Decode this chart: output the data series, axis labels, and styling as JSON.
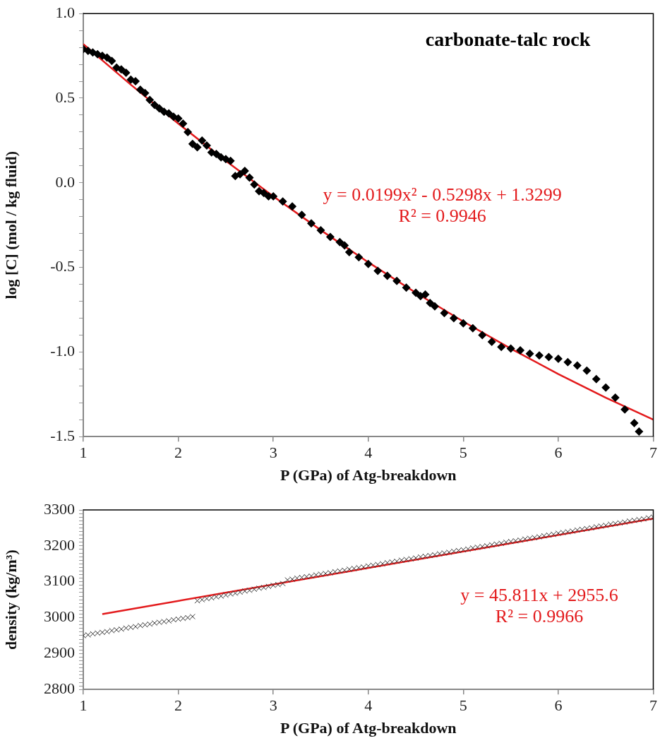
{
  "chart_data": [
    {
      "type": "scatter",
      "title": "carbonate-talc rock",
      "xlabel": "P (GPa) of Atg-breakdown",
      "ylabel": "log [C] (mol / kg fluid)",
      "marker": "diamond",
      "legend": false,
      "grid": false,
      "xlim": [
        1,
        7
      ],
      "xticks": [
        1,
        2,
        3,
        4,
        5,
        6,
        7
      ],
      "ylim": [
        -1.5,
        1
      ],
      "yticks": [
        {
          "value": -1.5,
          "label": "-1.5"
        },
        {
          "value": -1.4,
          "label": null
        },
        {
          "value": -1.3,
          "label": null
        },
        {
          "value": -1.2,
          "label": null
        },
        {
          "value": -1.1,
          "label": null
        },
        {
          "value": -1,
          "label": "-1.0"
        },
        {
          "value": -0.9,
          "label": null
        },
        {
          "value": -0.8,
          "label": null
        },
        {
          "value": -0.7,
          "label": null
        },
        {
          "value": -0.6,
          "label": null
        },
        {
          "value": -0.5,
          "label": "-0.5"
        },
        {
          "value": -0.4,
          "label": null
        },
        {
          "value": -0.3,
          "label": null
        },
        {
          "value": -0.2,
          "label": null
        },
        {
          "value": -0.1,
          "label": null
        },
        {
          "value": 0,
          "label": "0.0"
        },
        {
          "value": 0.1,
          "label": null
        },
        {
          "value": 0.2,
          "label": null
        },
        {
          "value": 0.3,
          "label": null
        },
        {
          "value": 0.4,
          "label": null
        },
        {
          "value": 0.5,
          "label": "0.5"
        },
        {
          "value": 0.6,
          "label": null
        },
        {
          "value": 0.7,
          "label": null
        },
        {
          "value": 0.8,
          "label": null
        },
        {
          "value": 0.9,
          "label": null
        },
        {
          "value": 1,
          "label": "1.0"
        }
      ],
      "annotations": [
        "y = 0.0199x² - 0.5298x + 1.3299",
        "R² = 0.9946"
      ],
      "series": [
        {
          "color": "#000000",
          "x": [
            1.0,
            1.05,
            1.1,
            1.15,
            1.2,
            1.25,
            1.3,
            1.35,
            1.4,
            1.45,
            1.5,
            1.55,
            1.6,
            1.65,
            1.7,
            1.75,
            1.8,
            1.85,
            1.9,
            1.95,
            2.0,
            2.05,
            2.1,
            2.15,
            2.2,
            2.25,
            2.3,
            2.35,
            2.4,
            2.45,
            2.5,
            2.55,
            2.6,
            2.65,
            2.7,
            2.75,
            2.8,
            2.85,
            2.9,
            2.95,
            3.0,
            3.1,
            3.2,
            3.3,
            3.4,
            3.5,
            3.6,
            3.7,
            3.75,
            3.8,
            3.9,
            4.0,
            4.1,
            4.2,
            4.3,
            4.4,
            4.5,
            4.55,
            4.6,
            4.65,
            4.7,
            4.8,
            4.9,
            5.0,
            5.1,
            5.2,
            5.3,
            5.4,
            5.5,
            5.6,
            5.7,
            5.8,
            5.9,
            6.0,
            6.1,
            6.2,
            6.3,
            6.4,
            6.5,
            6.6,
            6.7,
            6.8,
            6.85
          ],
          "values": [
            0.79,
            0.78,
            0.77,
            0.76,
            0.75,
            0.74,
            0.72,
            0.68,
            0.67,
            0.65,
            0.61,
            0.6,
            0.55,
            0.53,
            0.49,
            0.46,
            0.44,
            0.42,
            0.41,
            0.39,
            0.38,
            0.35,
            0.3,
            0.23,
            0.21,
            0.25,
            0.22,
            0.18,
            0.17,
            0.15,
            0.14,
            0.13,
            0.04,
            0.05,
            0.07,
            0.03,
            -0.01,
            -0.05,
            -0.06,
            -0.08,
            -0.08,
            -0.11,
            -0.14,
            -0.19,
            -0.24,
            -0.28,
            -0.32,
            -0.35,
            -0.37,
            -0.41,
            -0.44,
            -0.48,
            -0.52,
            -0.55,
            -0.58,
            -0.62,
            -0.65,
            -0.67,
            -0.66,
            -0.71,
            -0.73,
            -0.77,
            -0.8,
            -0.83,
            -0.86,
            -0.9,
            -0.94,
            -0.97,
            -0.98,
            -0.99,
            -1.01,
            -1.02,
            -1.03,
            -1.04,
            -1.06,
            -1.08,
            -1.11,
            -1.16,
            -1.21,
            -1.27,
            -1.34,
            -1.42,
            -1.47
          ]
        },
        {
          "type": "line",
          "color": "#e31a1c",
          "marker": "none",
          "x": [
            1,
            1.5,
            2,
            2.5,
            3,
            3.5,
            4,
            4.5,
            5,
            5.5,
            6,
            6.5,
            7
          ],
          "values": [
            0.82,
            0.58,
            0.35,
            0.13,
            -0.08,
            -0.28,
            -0.47,
            -0.65,
            -0.82,
            -0.98,
            -1.13,
            -1.27,
            -1.4
          ]
        }
      ]
    },
    {
      "type": "scatter",
      "xlabel": "P (GPa) of Atg-breakdown",
      "ylabel": "density (kg/m³)",
      "marker": "cross",
      "legend": false,
      "grid": false,
      "xlim": [
        1,
        7
      ],
      "xticks": [
        1,
        2,
        3,
        4,
        5,
        6,
        7
      ],
      "ylim": [
        2800,
        3300
      ],
      "yticks": [
        2800,
        {
          "value": 2810,
          "label": null
        },
        {
          "value": 2820,
          "label": null
        },
        {
          "value": 2830,
          "label": null
        },
        {
          "value": 2840,
          "label": null
        },
        {
          "value": 2850,
          "label": null
        },
        {
          "value": 2860,
          "label": null
        },
        {
          "value": 2870,
          "label": null
        },
        {
          "value": 2880,
          "label": null
        },
        {
          "value": 2890,
          "label": null
        },
        2900,
        {
          "value": 2910,
          "label": null
        },
        {
          "value": 2920,
          "label": null
        },
        {
          "value": 2930,
          "label": null
        },
        {
          "value": 2940,
          "label": null
        },
        {
          "value": 2950,
          "label": null
        },
        {
          "value": 2960,
          "label": null
        },
        {
          "value": 2970,
          "label": null
        },
        {
          "value": 2980,
          "label": null
        },
        {
          "value": 2990,
          "label": null
        },
        3000,
        {
          "value": 3010,
          "label": null
        },
        {
          "value": 3020,
          "label": null
        },
        {
          "value": 3030,
          "label": null
        },
        {
          "value": 3040,
          "label": null
        },
        {
          "value": 3050,
          "label": null
        },
        {
          "value": 3060,
          "label": null
        },
        {
          "value": 3070,
          "label": null
        },
        {
          "value": 3080,
          "label": null
        },
        {
          "value": 3090,
          "label": null
        },
        3100,
        {
          "value": 3110,
          "label": null
        },
        {
          "value": 3120,
          "label": null
        },
        {
          "value": 3130,
          "label": null
        },
        {
          "value": 3140,
          "label": null
        },
        {
          "value": 3150,
          "label": null
        },
        {
          "value": 3160,
          "label": null
        },
        {
          "value": 3170,
          "label": null
        },
        {
          "value": 3180,
          "label": null
        },
        {
          "value": 3190,
          "label": null
        },
        3200,
        {
          "value": 3210,
          "label": null
        },
        {
          "value": 3220,
          "label": null
        },
        {
          "value": 3230,
          "label": null
        },
        {
          "value": 3240,
          "label": null
        },
        {
          "value": 3250,
          "label": null
        },
        {
          "value": 3260,
          "label": null
        },
        {
          "value": 3270,
          "label": null
        },
        {
          "value": 3280,
          "label": null
        },
        {
          "value": 3290,
          "label": null
        },
        3300
      ],
      "annotations": [
        "y = 45.811x + 2955.6",
        "R² = 0.9966"
      ],
      "series": [
        {
          "color": "#333333",
          "x": [
            1.0,
            1.05,
            1.1,
            1.15,
            1.2,
            1.25,
            1.3,
            1.35,
            1.4,
            1.45,
            1.5,
            1.55,
            1.6,
            1.65,
            1.7,
            1.75,
            1.8,
            1.85,
            1.9,
            1.95,
            2.0,
            2.05,
            2.1,
            2.15,
            2.2,
            2.25,
            2.3,
            2.35,
            2.4,
            2.45,
            2.5,
            2.55,
            2.6,
            2.65,
            2.7,
            2.75,
            2.8,
            2.85,
            2.9,
            2.95,
            3.0,
            3.05,
            3.1,
            3.15,
            3.2,
            3.25,
            3.3,
            3.35,
            3.4,
            3.45,
            3.5,
            3.55,
            3.6,
            3.65,
            3.7,
            3.75,
            3.8,
            3.85,
            3.9,
            3.95,
            4.0,
            4.05,
            4.1,
            4.15,
            4.2,
            4.25,
            4.3,
            4.35,
            4.4,
            4.45,
            4.5,
            4.55,
            4.6,
            4.65,
            4.7,
            4.75,
            4.8,
            4.85,
            4.9,
            4.95,
            5.0,
            5.05,
            5.1,
            5.15,
            5.2,
            5.25,
            5.3,
            5.35,
            5.4,
            5.45,
            5.5,
            5.55,
            5.6,
            5.65,
            5.7,
            5.75,
            5.8,
            5.85,
            5.9,
            5.95,
            6.0,
            6.05,
            6.1,
            6.15,
            6.2,
            6.25,
            6.3,
            6.35,
            6.4,
            6.45,
            6.5,
            6.55,
            6.6,
            6.65,
            6.7,
            6.75,
            6.8,
            6.85,
            6.9,
            6.95,
            7.0
          ],
          "values": [
            2950,
            2952,
            2955,
            2957,
            2959,
            2961,
            2964,
            2966,
            2968,
            2971,
            2973,
            2975,
            2978,
            2980,
            2982,
            2985,
            2987,
            2989,
            2991,
            2994,
            2996,
            2998,
            3000,
            3003,
            3047,
            3050,
            3053,
            3055,
            3058,
            3060,
            3063,
            3066,
            3068,
            3071,
            3074,
            3076,
            3079,
            3082,
            3084,
            3087,
            3090,
            3092,
            3095,
            3105,
            3107,
            3110,
            3112,
            3114,
            3116,
            3119,
            3121,
            3123,
            3125,
            3128,
            3130,
            3132,
            3135,
            3137,
            3139,
            3141,
            3144,
            3146,
            3148,
            3150,
            3153,
            3155,
            3157,
            3160,
            3162,
            3164,
            3166,
            3169,
            3171,
            3173,
            3175,
            3178,
            3180,
            3182,
            3185,
            3187,
            3189,
            3191,
            3194,
            3196,
            3198,
            3200,
            3203,
            3205,
            3207,
            3210,
            3212,
            3214,
            3216,
            3219,
            3221,
            3223,
            3225,
            3228,
            3230,
            3232,
            3235,
            3237,
            3239,
            3241,
            3244,
            3246,
            3248,
            3250,
            3253,
            3255,
            3257,
            3260,
            3262,
            3264,
            3266,
            3269,
            3271,
            3273,
            3275,
            3278,
            3280
          ]
        },
        {
          "type": "line",
          "color": "#e31a1c",
          "marker": "none",
          "x": [
            1.2,
            7
          ],
          "values": [
            3010,
            3276
          ]
        }
      ]
    }
  ]
}
